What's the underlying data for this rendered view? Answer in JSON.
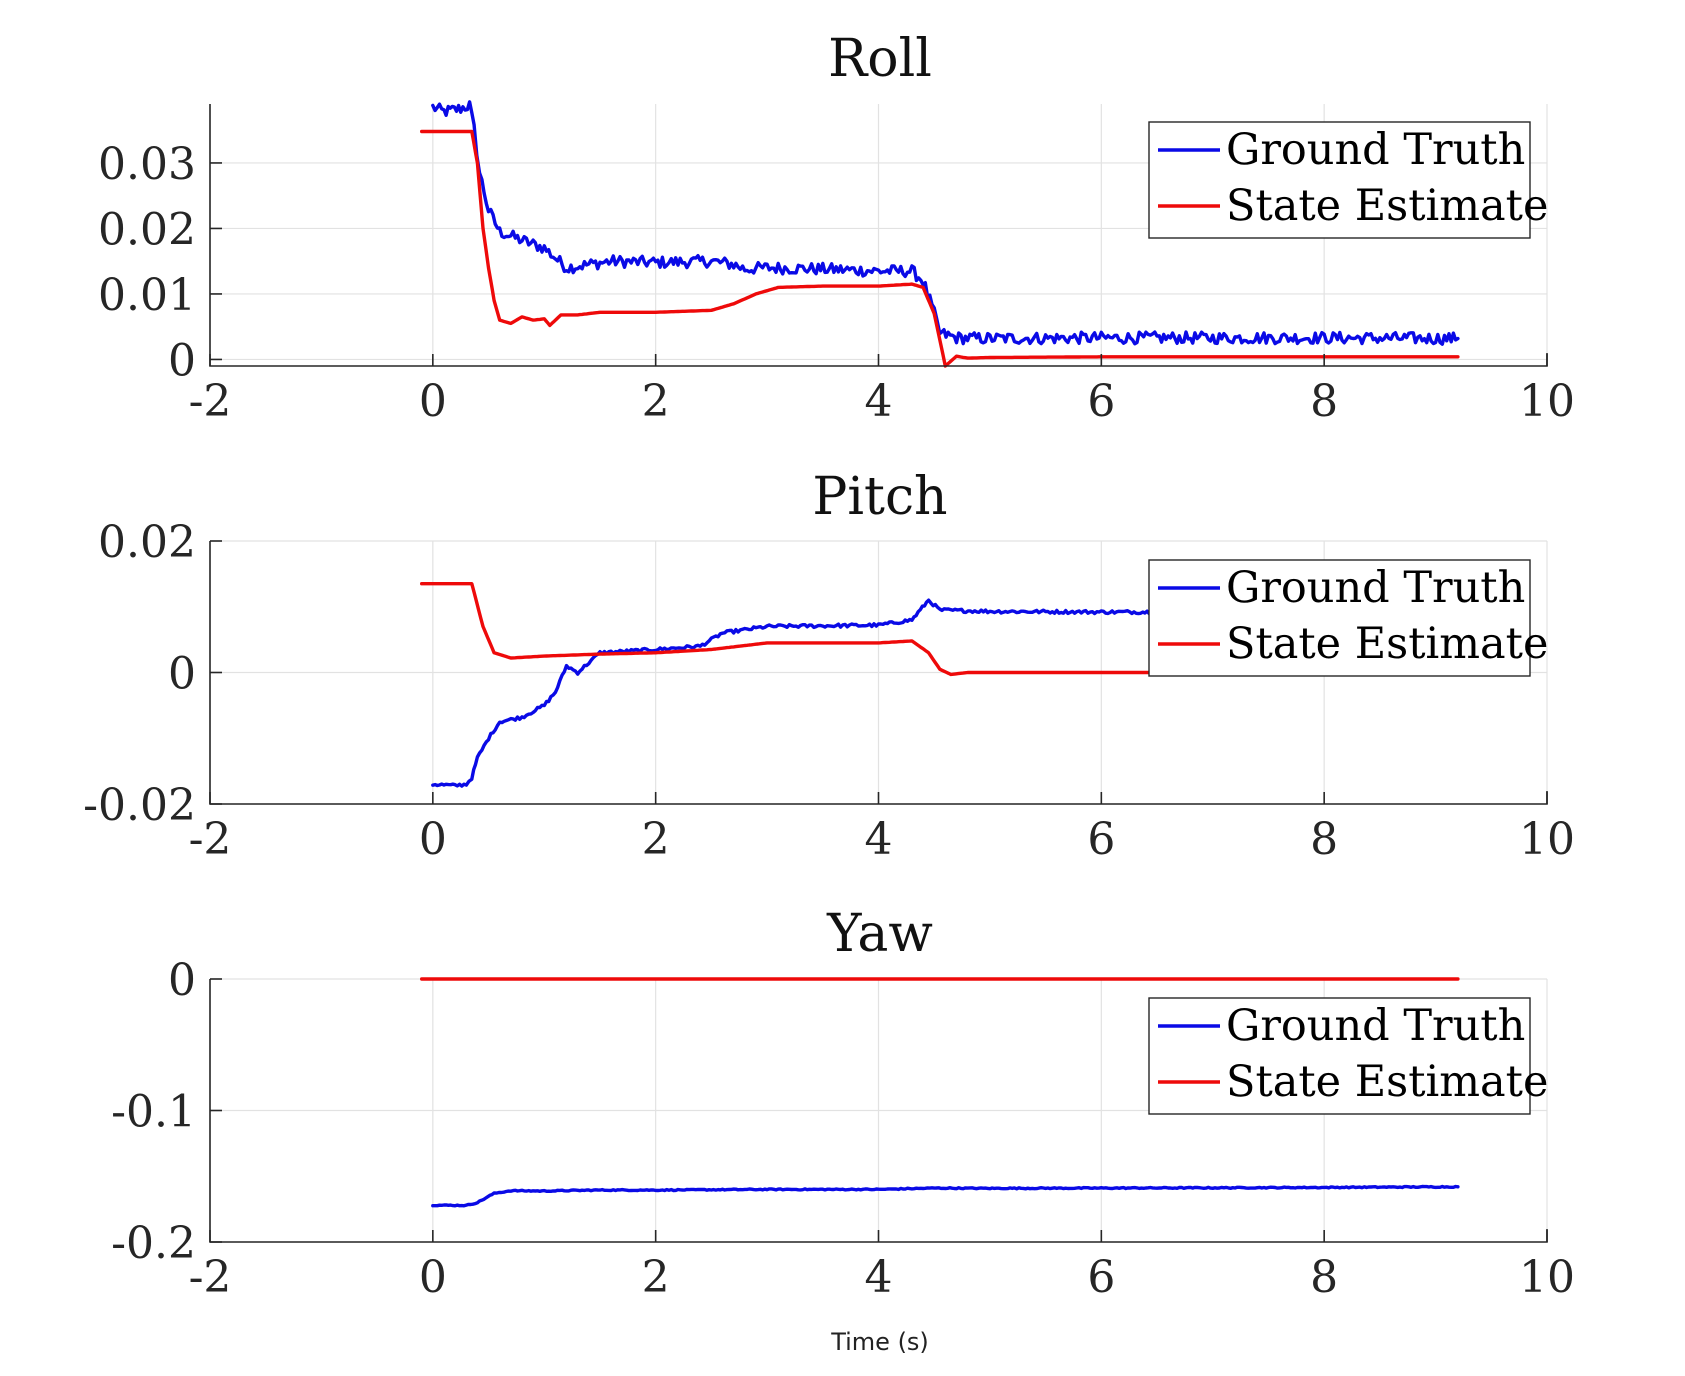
{
  "colors": {
    "ground_truth": "#0a0ae6",
    "state_estimate": "#ee0a0a"
  },
  "chart_data": [
    {
      "type": "line",
      "title": "Roll",
      "xlabel": "",
      "ylabel": "",
      "xlim": [
        -2,
        10
      ],
      "ylim": [
        -0.001,
        0.039
      ],
      "xticks": [
        -2,
        0,
        2,
        4,
        6,
        8,
        10
      ],
      "xtick_labels": [
        "-2",
        "0",
        "2",
        "4",
        "6",
        "8",
        "10"
      ],
      "yticks": [
        0,
        0.01,
        0.02,
        0.03
      ],
      "ytick_labels": [
        "0",
        "0.01",
        "0.02",
        "0.03"
      ],
      "grid": true,
      "legend_position": "top-right",
      "series": [
        {
          "name": "Ground Truth",
          "color": "#0a0ae6",
          "noise": 0.0009,
          "points": [
            [
              0,
              0.0385
            ],
            [
              0.1,
              0.0378
            ],
            [
              0.25,
              0.0383
            ],
            [
              0.33,
              0.0388
            ],
            [
              0.37,
              0.0352
            ],
            [
              0.42,
              0.0285
            ],
            [
              0.5,
              0.0228
            ],
            [
              0.6,
              0.0195
            ],
            [
              0.8,
              0.0182
            ],
            [
              1.0,
              0.017
            ],
            [
              1.1,
              0.0155
            ],
            [
              1.2,
              0.014
            ],
            [
              1.4,
              0.0145
            ],
            [
              1.6,
              0.015
            ],
            [
              2.0,
              0.0148
            ],
            [
              2.5,
              0.015
            ],
            [
              2.7,
              0.0145
            ],
            [
              2.8,
              0.0138
            ],
            [
              3.0,
              0.014
            ],
            [
              3.5,
              0.0138
            ],
            [
              4.0,
              0.0135
            ],
            [
              4.3,
              0.0135
            ],
            [
              4.4,
              0.012
            ],
            [
              4.5,
              0.007
            ],
            [
              4.55,
              0.004
            ],
            [
              4.7,
              0.0033
            ],
            [
              5.0,
              0.0032
            ],
            [
              6.0,
              0.0033
            ],
            [
              7.0,
              0.0033
            ],
            [
              8.0,
              0.0033
            ],
            [
              9.2,
              0.0032
            ]
          ]
        },
        {
          "name": "State Estimate",
          "color": "#ee0a0a",
          "noise": 0,
          "points": [
            [
              -0.1,
              0.0348
            ],
            [
              0.35,
              0.0348
            ],
            [
              0.4,
              0.03
            ],
            [
              0.45,
              0.02
            ],
            [
              0.5,
              0.014
            ],
            [
              0.55,
              0.009
            ],
            [
              0.6,
              0.006
            ],
            [
              0.7,
              0.0055
            ],
            [
              0.8,
              0.0065
            ],
            [
              0.9,
              0.006
            ],
            [
              1.0,
              0.0062
            ],
            [
              1.05,
              0.0052
            ],
            [
              1.15,
              0.0068
            ],
            [
              1.3,
              0.0068
            ],
            [
              1.5,
              0.0072
            ],
            [
              2.0,
              0.0072
            ],
            [
              2.5,
              0.0075
            ],
            [
              2.7,
              0.0085
            ],
            [
              2.9,
              0.01
            ],
            [
              3.1,
              0.011
            ],
            [
              3.5,
              0.0112
            ],
            [
              4.0,
              0.0112
            ],
            [
              4.3,
              0.0115
            ],
            [
              4.4,
              0.011
            ],
            [
              4.5,
              0.007
            ],
            [
              4.55,
              0.003
            ],
            [
              4.6,
              -0.001
            ],
            [
              4.7,
              0.0005
            ],
            [
              4.8,
              0.0002
            ],
            [
              5.0,
              0.0003
            ],
            [
              6.0,
              0.0004
            ],
            [
              7.0,
              0.0004
            ],
            [
              8.0,
              0.0004
            ],
            [
              9.2,
              0.0004
            ]
          ]
        }
      ]
    },
    {
      "type": "line",
      "title": "Pitch",
      "xlabel": "",
      "ylabel": "",
      "xlim": [
        -2,
        10
      ],
      "ylim": [
        -0.02,
        0.02
      ],
      "xticks": [
        -2,
        0,
        2,
        4,
        6,
        8,
        10
      ],
      "xtick_labels": [
        "-2",
        "0",
        "2",
        "4",
        "6",
        "8",
        "10"
      ],
      "yticks": [
        -0.02,
        0,
        0.02
      ],
      "ytick_labels": [
        "-0.02",
        "0",
        "0.02"
      ],
      "grid": true,
      "legend_position": "top-right",
      "series": [
        {
          "name": "Ground Truth",
          "color": "#0a0ae6",
          "noise": 0.00025,
          "points": [
            [
              0,
              -0.017
            ],
            [
              0.2,
              -0.0172
            ],
            [
              0.3,
              -0.017
            ],
            [
              0.35,
              -0.016
            ],
            [
              0.4,
              -0.013
            ],
            [
              0.5,
              -0.01
            ],
            [
              0.6,
              -0.0075
            ],
            [
              0.8,
              -0.0068
            ],
            [
              1.0,
              -0.005
            ],
            [
              1.1,
              -0.003
            ],
            [
              1.2,
              0.001
            ],
            [
              1.3,
              0.0
            ],
            [
              1.5,
              0.003
            ],
            [
              2.0,
              0.0035
            ],
            [
              2.4,
              0.004
            ],
            [
              2.6,
              0.006
            ],
            [
              3.0,
              0.007
            ],
            [
              4.0,
              0.0072
            ],
            [
              4.3,
              0.008
            ],
            [
              4.45,
              0.011
            ],
            [
              4.55,
              0.0095
            ],
            [
              5.0,
              0.0093
            ],
            [
              6.0,
              0.0092
            ],
            [
              6.45,
              0.0092
            ]
          ]
        },
        {
          "name": "State Estimate",
          "color": "#ee0a0a",
          "noise": 0,
          "points": [
            [
              -0.1,
              0.0135
            ],
            [
              0.35,
              0.0135
            ],
            [
              0.45,
              0.007
            ],
            [
              0.55,
              0.003
            ],
            [
              0.7,
              0.0022
            ],
            [
              1.0,
              0.0025
            ],
            [
              1.5,
              0.0028
            ],
            [
              2.0,
              0.003
            ],
            [
              2.5,
              0.0035
            ],
            [
              3.0,
              0.0045
            ],
            [
              4.0,
              0.0045
            ],
            [
              4.3,
              0.0048
            ],
            [
              4.45,
              0.003
            ],
            [
              4.55,
              0.0005
            ],
            [
              4.65,
              -0.0003
            ],
            [
              4.8,
              0.0
            ],
            [
              6.0,
              0.0
            ],
            [
              6.45,
              0.0
            ]
          ]
        }
      ]
    },
    {
      "type": "line",
      "title": "Yaw",
      "xlabel": "Time (s)",
      "ylabel": "",
      "xlim": [
        -2,
        10
      ],
      "ylim": [
        -0.2,
        0
      ],
      "xticks": [
        -2,
        0,
        2,
        4,
        6,
        8,
        10
      ],
      "xtick_labels": [
        "-2",
        "0",
        "2",
        "4",
        "6",
        "8",
        "10"
      ],
      "yticks": [
        -0.2,
        -0.1,
        0
      ],
      "ytick_labels": [
        "-0.2",
        "-0.1",
        "0"
      ],
      "grid": true,
      "legend_position": "top-right",
      "series": [
        {
          "name": "Ground Truth",
          "color": "#0a0ae6",
          "noise": 0.0004,
          "points": [
            [
              0,
              -0.172
            ],
            [
              0.3,
              -0.1722
            ],
            [
              0.4,
              -0.17
            ],
            [
              0.55,
              -0.163
            ],
            [
              0.7,
              -0.161
            ],
            [
              1.0,
              -0.1612
            ],
            [
              1.5,
              -0.1605
            ],
            [
              2.0,
              -0.1605
            ],
            [
              3.0,
              -0.16
            ],
            [
              4.0,
              -0.16
            ],
            [
              4.5,
              -0.159
            ],
            [
              5.0,
              -0.1592
            ],
            [
              6.0,
              -0.159
            ],
            [
              7.0,
              -0.1588
            ],
            [
              8.0,
              -0.1585
            ],
            [
              9.2,
              -0.158
            ]
          ]
        },
        {
          "name": "State Estimate",
          "color": "#ee0a0a",
          "noise": 0,
          "points": [
            [
              -0.1,
              0.0
            ],
            [
              9.2,
              0.0
            ]
          ]
        }
      ]
    }
  ]
}
